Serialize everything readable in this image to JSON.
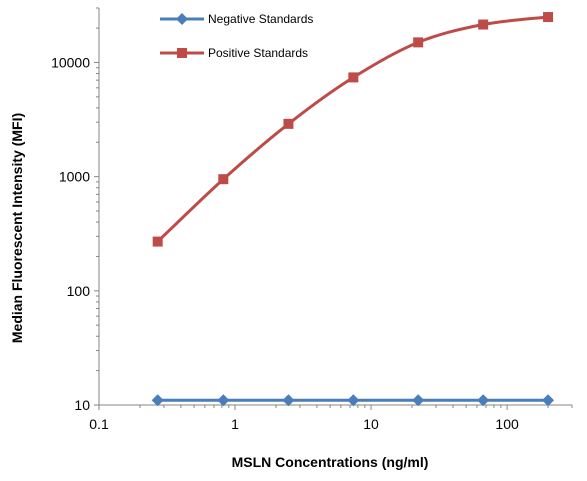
{
  "chart_data": {
    "type": "line",
    "title": "",
    "xlabel": "MSLN Concentrations (ng/ml)",
    "ylabel": "Median Fluorescent Intensity (MFI)",
    "x_scale": "log",
    "y_scale": "log",
    "xlim": [
      0.1,
      300
    ],
    "ylim": [
      10,
      30000
    ],
    "x_ticks": [
      0.1,
      1,
      10,
      100
    ],
    "x_tick_labels": [
      "0.1",
      "1",
      "10",
      "100"
    ],
    "y_ticks": [
      10,
      100,
      1000,
      10000
    ],
    "y_tick_labels": [
      "10",
      "100",
      "1000",
      "10000"
    ],
    "grid": false,
    "legend_position": "top-center",
    "series": [
      {
        "name": "Negative Standards",
        "color": "#4a7ebb",
        "marker": "diamond",
        "x": [
          0.27,
          0.82,
          2.47,
          7.41,
          22.2,
          66.7,
          200
        ],
        "y": [
          11,
          11,
          11,
          11,
          11,
          11,
          11
        ]
      },
      {
        "name": "Positive Standards",
        "color": "#be4b48",
        "marker": "square",
        "x": [
          0.27,
          0.82,
          2.47,
          7.41,
          22.2,
          66.7,
          200
        ],
        "y": [
          270,
          950,
          2900,
          7400,
          15000,
          21500,
          25000
        ]
      }
    ]
  }
}
